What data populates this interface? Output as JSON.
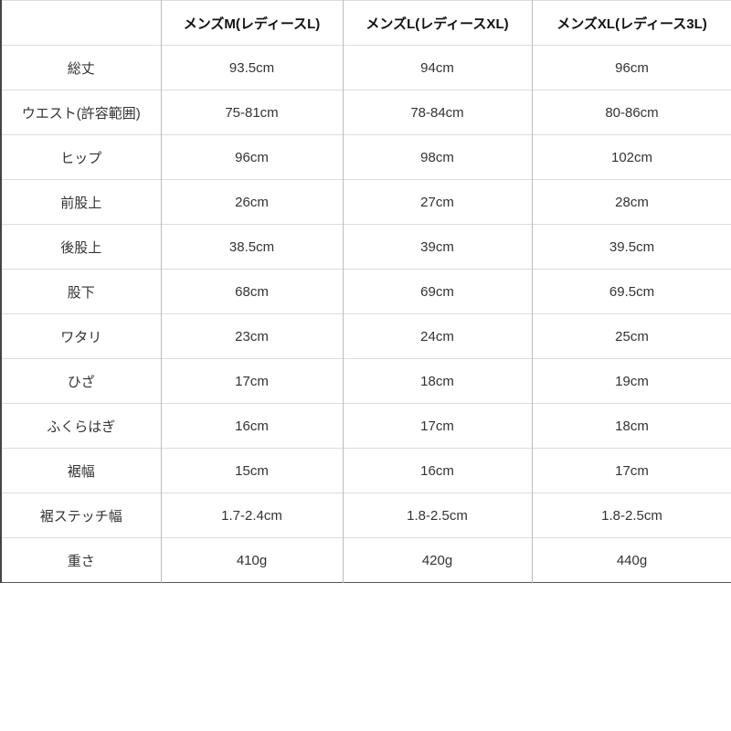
{
  "table": {
    "headers": [
      "",
      "メンズM(レディースL)",
      "メンズL(レディースXL)",
      "メンズXL(レディース3L)"
    ],
    "rows": [
      [
        "総丈",
        "93.5cm",
        "94cm",
        "96cm"
      ],
      [
        "ウエスト(許容範囲)",
        "75-81cm",
        "78-84cm",
        "80-86cm"
      ],
      [
        "ヒップ",
        "96cm",
        "98cm",
        "102cm"
      ],
      [
        "前股上",
        "26cm",
        "27cm",
        "28cm"
      ],
      [
        "後股上",
        "38.5cm",
        "39cm",
        "39.5cm"
      ],
      [
        "股下",
        "68cm",
        "69cm",
        "69.5cm"
      ],
      [
        "ワタリ",
        "23cm",
        "24cm",
        "25cm"
      ],
      [
        "ひざ",
        "17cm",
        "18cm",
        "19cm"
      ],
      [
        "ふくらはぎ",
        "16cm",
        "17cm",
        "18cm"
      ],
      [
        "裾幅",
        "15cm",
        "16cm",
        "17cm"
      ],
      [
        "裾ステッチ幅",
        "1.7-2.4cm",
        "1.8-2.5cm",
        "1.8-2.5cm"
      ],
      [
        "重さ",
        "410g",
        "420g",
        "440g"
      ]
    ]
  }
}
